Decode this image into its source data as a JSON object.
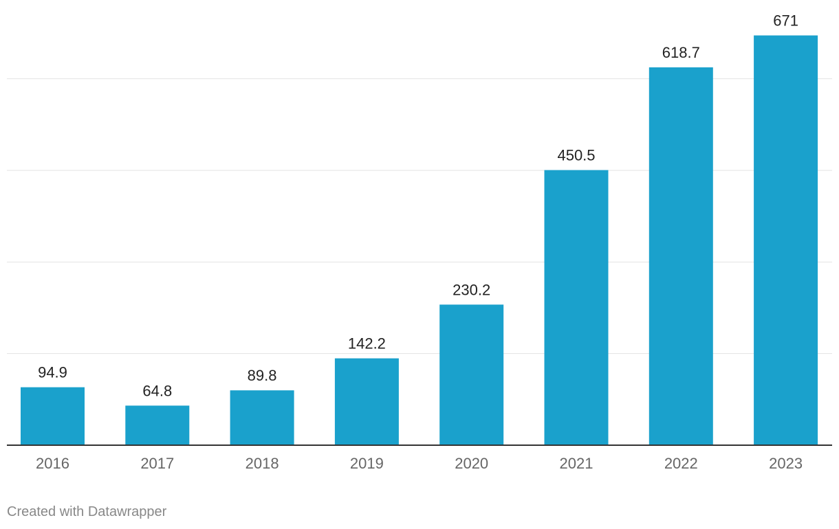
{
  "chart_data": {
    "type": "bar",
    "title": "",
    "xlabel": "",
    "ylabel": "",
    "categories": [
      "2016",
      "2017",
      "2018",
      "2019",
      "2020",
      "2021",
      "2022",
      "2023"
    ],
    "values": [
      94.9,
      64.8,
      89.8,
      142.2,
      230.2,
      450.5,
      618.7,
      671
    ],
    "value_labels": [
      "94.9",
      "64.8",
      "89.8",
      "142.2",
      "230.2",
      "450.5",
      "618.7",
      "671"
    ],
    "ylim": [
      0,
      675
    ],
    "gridlines": [
      150,
      300,
      450,
      600
    ],
    "grid": true,
    "bar_color": "#1aa1cc"
  },
  "footer": {
    "credit": "Created with Datawrapper"
  }
}
